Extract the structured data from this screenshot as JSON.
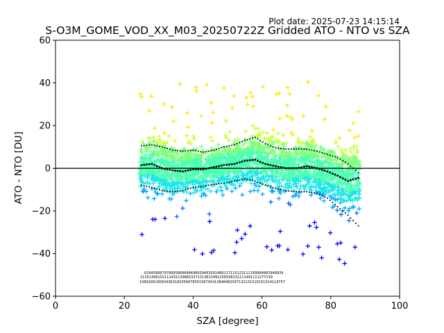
{
  "chart_data": {
    "type": "scatter",
    "title": "S-O3M_GOME_VOD_XX_M03_20250722Z Gridded ATO - NTO vs SZA",
    "subtitle": "Plot date: 2025-07-23 14:15:14",
    "xlabel": "SZA [degree]",
    "ylabel": "ATO - NTO [DU]",
    "xlim": [
      0,
      100
    ],
    "ylim": [
      -60,
      60
    ],
    "xticks": [
      0,
      20,
      40,
      60,
      80,
      100
    ],
    "yticks": [
      -60,
      -40,
      -20,
      0,
      20,
      40,
      60
    ],
    "xtick_labels": [
      "0",
      "20",
      "40",
      "60",
      "80",
      "100"
    ],
    "ytick_labels": [
      "−60",
      "−40",
      "−20",
      "0",
      "20",
      "40",
      "60"
    ],
    "grid": false,
    "zero_line": 0,
    "marker": "+",
    "colormap": "jet",
    "data_x_range": [
      24.5,
      88.5
    ],
    "series": [
      {
        "kind": "mean",
        "x": [
          25,
          28,
          31,
          34,
          37,
          40,
          43,
          46,
          49,
          52,
          55,
          58,
          61,
          64,
          67,
          70,
          73,
          76,
          79,
          82,
          85,
          88
        ],
        "y": [
          1.5,
          2,
          0,
          -1,
          -1.5,
          -0.5,
          -0.5,
          0.5,
          1.5,
          2,
          3.5,
          4,
          2,
          1,
          0,
          0,
          1,
          0,
          -1.5,
          -3.5,
          -6,
          -4.5
        ]
      },
      {
        "kind": "mean_plus_std",
        "x": [
          25,
          28,
          31,
          34,
          37,
          40,
          43,
          46,
          49,
          52,
          55,
          58,
          61,
          64,
          67,
          70,
          73,
          76,
          79,
          82,
          85,
          88
        ],
        "y": [
          10.5,
          11,
          10,
          8.5,
          8,
          8.5,
          7.5,
          8.5,
          10,
          11,
          13,
          14.5,
          11.5,
          9.5,
          9,
          9,
          9,
          8,
          6.5,
          5,
          2,
          -2
        ]
      },
      {
        "kind": "mean_minus_std",
        "x": [
          25,
          28,
          31,
          34,
          37,
          40,
          43,
          46,
          49,
          52,
          55,
          58,
          61,
          64,
          67,
          70,
          73,
          76,
          79,
          82,
          85,
          88
        ],
        "y": [
          -8,
          -9,
          -10.5,
          -11,
          -10.5,
          -9,
          -8.5,
          -7.5,
          -7,
          -6,
          -5,
          -6,
          -8,
          -9.5,
          -10.5,
          -11,
          -11,
          -12,
          -14,
          -18,
          -22,
          -27
        ]
      }
    ],
    "counts": {
      "rows": [
        "626458897978995868848498939463591486117115123111189884883948939",
        "112513681011114311398823371313613491158168131111491111277139",
        "108929518093436318335687835156745413848463597132131516151514114757"
      ]
    }
  },
  "colors": {
    "scatter_palette": [
      "#ffe600",
      "#c8ff37",
      "#7dff7a",
      "#4dffb0",
      "#1ee6e6",
      "#00aaff",
      "#0066ff",
      "#0000ff"
    ],
    "mean_markers": "#000000",
    "axis": "#000000"
  }
}
